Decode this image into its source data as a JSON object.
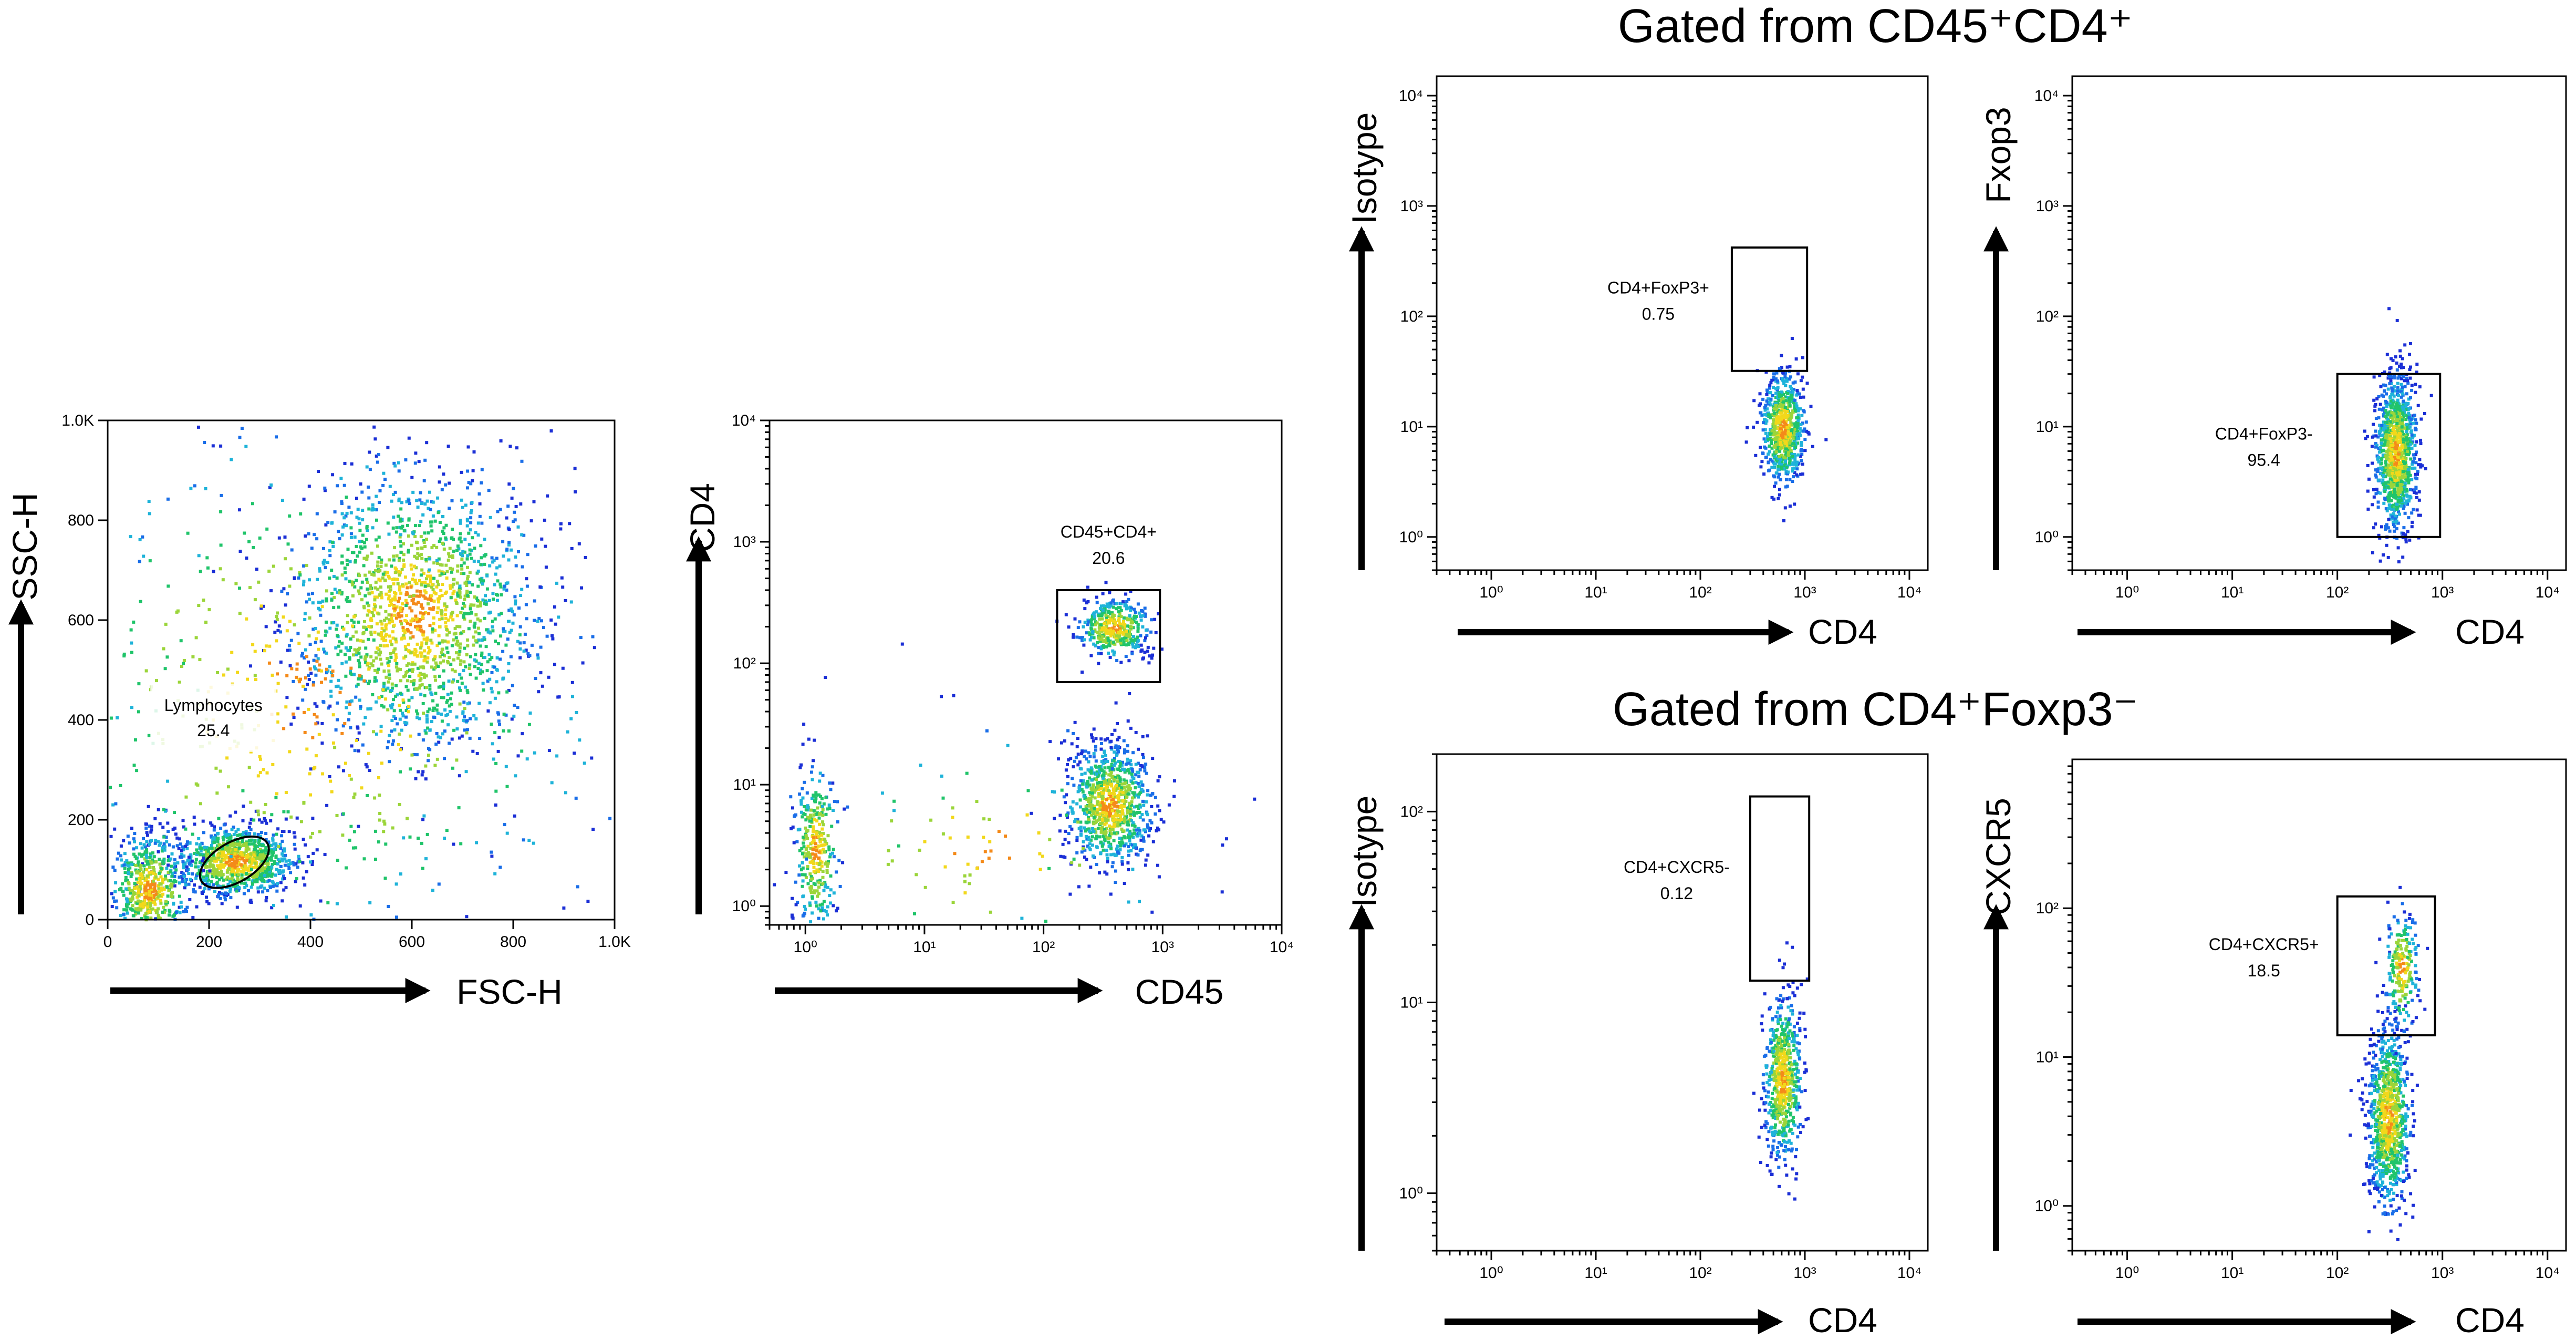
{
  "headers": {
    "top": "Gated from CD45⁺CD4⁺",
    "bottom": "Gated from CD4⁺Foxp3⁻"
  },
  "chart_data": [
    {
      "type": "scatter",
      "id": "p1",
      "xlabel": "FSC-H",
      "ylabel": "SSC-H",
      "xscale": "linear",
      "yscale": "linear",
      "xlim": [
        0,
        1000
      ],
      "ylim": [
        0,
        1000
      ],
      "xticks": [
        0,
        200,
        400,
        600,
        800,
        1000
      ],
      "xtick_labels": [
        "0",
        "200",
        "400",
        "600",
        "800",
        "1.0K"
      ],
      "yticks": [
        0,
        200,
        400,
        600,
        800,
        1000
      ],
      "ytick_labels": [
        "0",
        "200",
        "400",
        "600",
        "800",
        "1.0K"
      ],
      "gate": {
        "shape": "ellipse",
        "name": "Lymphocytes",
        "percent": "25.4",
        "center": [
          250,
          115
        ],
        "radii": [
          75,
          40
        ]
      },
      "populations": [
        {
          "center": [
            600,
            620
          ],
          "spread": [
            120,
            140
          ],
          "count": 1600,
          "kind": "linear"
        },
        {
          "center": [
            250,
            120
          ],
          "spread": [
            60,
            35
          ],
          "count": 900,
          "kind": "linear"
        },
        {
          "center": [
            80,
            60
          ],
          "spread": [
            40,
            60
          ],
          "count": 600,
          "kind": "linear"
        },
        {
          "center": [
            400,
            450
          ],
          "spread": [
            300,
            280
          ],
          "count": 700,
          "kind": "linear"
        }
      ]
    },
    {
      "type": "scatter",
      "id": "p2",
      "xlabel": "CD45",
      "ylabel": "CD4",
      "xscale": "log",
      "yscale": "log",
      "xlim": [
        0.5,
        10000
      ],
      "ylim": [
        0.7,
        10000
      ],
      "xticks": [
        1,
        10,
        100,
        1000,
        10000
      ],
      "yticks": [
        1,
        10,
        100,
        1000,
        10000
      ],
      "gate": {
        "shape": "rect",
        "name": "CD45+CD4+",
        "percent": "20.6",
        "x": [
          130,
          950
        ],
        "y": [
          70,
          400
        ]
      },
      "populations": [
        {
          "center": [
            380,
            200
          ],
          "spread": [
            0.15,
            0.12
          ],
          "count": 420
        },
        {
          "center": [
            350,
            7
          ],
          "spread": [
            0.18,
            0.25
          ],
          "count": 900
        },
        {
          "center": [
            1.2,
            3
          ],
          "spread": [
            0.1,
            0.35
          ],
          "count": 320
        },
        {
          "center": [
            30,
            3
          ],
          "spread": [
            0.8,
            0.5
          ],
          "count": 120
        }
      ]
    },
    {
      "type": "scatter",
      "id": "p3",
      "xlabel": "CD4",
      "ylabel": "Isotype",
      "xscale": "log",
      "yscale": "log",
      "xlim": [
        0.3,
        15000
      ],
      "ylim": [
        0.5,
        15000
      ],
      "xticks": [
        1,
        10,
        100,
        1000,
        10000
      ],
      "yticks": [
        1,
        10,
        100,
        1000,
        10000
      ],
      "gate": {
        "shape": "rect",
        "name": "CD4+FoxP3+",
        "percent": "0.75",
        "x": [
          200,
          1050
        ],
        "y": [
          32,
          420
        ]
      },
      "populations": [
        {
          "center": [
            600,
            10
          ],
          "spread": [
            0.1,
            0.25
          ],
          "count": 700
        }
      ]
    },
    {
      "type": "scatter",
      "id": "p4",
      "xlabel": "CD4",
      "ylabel": "Fxop3",
      "xscale": "log",
      "yscale": "log",
      "xlim": [
        0.3,
        15000
      ],
      "ylim": [
        0.5,
        15000
      ],
      "xticks": [
        1,
        10,
        100,
        1000,
        10000
      ],
      "yticks": [
        1,
        10,
        100,
        1000,
        10000
      ],
      "gate": {
        "shape": "rect",
        "name": "CD4+FoxP3-",
        "percent": "95.4",
        "x": [
          100,
          950
        ],
        "y": [
          1,
          30
        ]
      },
      "populations": [
        {
          "center": [
            350,
            6
          ],
          "spread": [
            0.1,
            0.35
          ],
          "count": 1100
        }
      ]
    },
    {
      "type": "scatter",
      "id": "p5",
      "xlabel": "CD4",
      "ylabel": "Isotype",
      "xscale": "log",
      "yscale": "log",
      "xlim": [
        0.3,
        15000
      ],
      "ylim": [
        0.5,
        200
      ],
      "xticks": [
        1,
        10,
        100,
        1000,
        10000
      ],
      "yticks": [
        1,
        10,
        100
      ],
      "gate": {
        "shape": "rect",
        "name": "CD4+CXCR5-",
        "percent": "0.12",
        "x": [
          300,
          1100
        ],
        "y": [
          13,
          120
        ]
      },
      "populations": [
        {
          "center": [
            600,
            4
          ],
          "spread": [
            0.09,
            0.22
          ],
          "count": 650
        }
      ]
    },
    {
      "type": "scatter",
      "id": "p6",
      "xlabel": "CD4",
      "ylabel": "CXCR5",
      "xscale": "log",
      "yscale": "log",
      "xlim": [
        0.3,
        15000
      ],
      "ylim": [
        0.5,
        1000
      ],
      "xticks": [
        1,
        10,
        100,
        1000,
        10000
      ],
      "yticks": [
        1,
        10,
        100
      ],
      "gate": {
        "shape": "rect",
        "name": "CD4+CXCR5+",
        "percent": "18.5",
        "x": [
          100,
          850
        ],
        "y": [
          14,
          120
        ]
      },
      "populations": [
        {
          "center": [
            300,
            4
          ],
          "spread": [
            0.1,
            0.3
          ],
          "count": 900
        },
        {
          "center": [
            400,
            40
          ],
          "spread": [
            0.08,
            0.2
          ],
          "count": 220
        }
      ]
    }
  ]
}
